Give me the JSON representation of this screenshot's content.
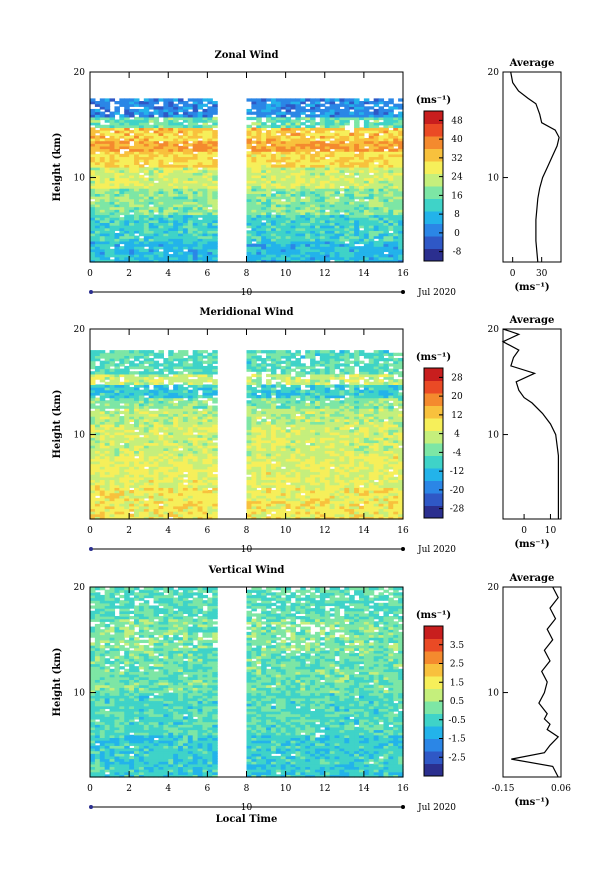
{
  "figure": {
    "xlabel": "Local Time",
    "ylabel": "Height (km)",
    "date_label": "Jul 2020",
    "day_label": "10",
    "unit_label": "(ms⁻¹)",
    "profile_title": "Average"
  },
  "chart_data": [
    {
      "type": "heatmap",
      "title": "Zonal Wind",
      "xlabel": "",
      "ylabel": "Height (km)",
      "xlim": [
        0,
        16
      ],
      "ylim": [
        2,
        20
      ],
      "x_ticks": [
        0,
        2,
        4,
        6,
        8,
        10,
        12,
        14,
        16
      ],
      "y_ticks": [
        10,
        20
      ],
      "data_gap": [
        6.6,
        7.9
      ],
      "colorbar": {
        "levels": [
          -8,
          0,
          8,
          16,
          24,
          32,
          40,
          48
        ],
        "range": [
          -12,
          52
        ]
      },
      "data_top_km": 17.3,
      "field": {
        "layers": [
          {
            "h": [
              2,
              4.0
            ],
            "v": 8
          },
          {
            "h": [
              4.0,
              6.5
            ],
            "v": 12
          },
          {
            "h": [
              6.5,
              9.0
            ],
            "v": 18
          },
          {
            "h": [
              9.0,
              11.0
            ],
            "v": 24
          },
          {
            "h": [
              11.0,
              12.5
            ],
            "v": 30
          },
          {
            "h": [
              12.5,
              13.5
            ],
            "v": 36
          },
          {
            "h": [
              13.5,
              14.6
            ],
            "v": 32
          },
          {
            "h": [
              14.6,
              15.6
            ],
            "v": 16
          },
          {
            "h": [
              15.6,
              17.3
            ],
            "v": 2
          }
        ]
      },
      "profile": {
        "xlim": [
          -10,
          50
        ],
        "x_ticks": [
          0,
          30
        ],
        "height": [
          2,
          4,
          6,
          8,
          9,
          10,
          11,
          12,
          13,
          13.8,
          14.5,
          15.2,
          16,
          17,
          17.5,
          18.2,
          19,
          20
        ],
        "value": [
          26,
          24,
          24,
          26,
          28,
          31,
          36,
          41,
          46,
          48,
          44,
          30,
          28,
          24,
          16,
          6,
          0,
          -2
        ]
      },
      "profile_xlabel": "(ms⁻¹)",
      "date_label": "Jul 2020",
      "day_label": "10"
    },
    {
      "type": "heatmap",
      "title": "Meridional Wind",
      "xlabel": "",
      "ylabel": "Height (km)",
      "xlim": [
        0,
        16
      ],
      "ylim": [
        2,
        20
      ],
      "x_ticks": [
        0,
        2,
        4,
        6,
        8,
        10,
        12,
        14,
        16
      ],
      "y_ticks": [
        10,
        20
      ],
      "data_gap": [
        6.6,
        7.9
      ],
      "colorbar": {
        "levels": [
          -28,
          -20,
          -12,
          -4,
          4,
          12,
          20,
          28
        ],
        "range": [
          -32,
          32
        ]
      },
      "data_top_km": 17.8,
      "field": {
        "layers": [
          {
            "h": [
              2,
              5.0
            ],
            "v": 8
          },
          {
            "h": [
              5.0,
              8.0
            ],
            "v": 6
          },
          {
            "h": [
              8.0,
              11.0
            ],
            "v": 4
          },
          {
            "h": [
              11.0,
              12.5
            ],
            "v": 2
          },
          {
            "h": [
              12.5,
              13.5
            ],
            "v": -2
          },
          {
            "h": [
              13.5,
              14.6
            ],
            "v": -9
          },
          {
            "h": [
              14.6,
              15.6
            ],
            "v": 3
          },
          {
            "h": [
              15.6,
              17.8
            ],
            "v": -6
          }
        ]
      },
      "profile": {
        "xlim": [
          -8,
          14
        ],
        "x_ticks": [
          0,
          10
        ],
        "height": [
          2,
          4,
          6,
          8,
          10,
          11,
          12,
          13,
          13.5,
          14.2,
          15,
          15.8,
          16.5,
          17.3,
          18,
          18.8,
          19.5,
          20
        ],
        "value": [
          13,
          13,
          13,
          13,
          12,
          10,
          7,
          3,
          0,
          -2,
          -3,
          4,
          -5,
          -4,
          -2,
          -8,
          -2,
          -8
        ]
      },
      "profile_xlabel": "(ms⁻¹)",
      "date_label": "Jul 2020",
      "day_label": "10"
    },
    {
      "type": "heatmap",
      "title": "Vertical Wind",
      "xlabel": "Local Time",
      "ylabel": "Height (km)",
      "xlim": [
        0,
        16
      ],
      "ylim": [
        2,
        20
      ],
      "x_ticks": [
        0,
        2,
        4,
        6,
        8,
        10,
        12,
        14,
        16
      ],
      "y_ticks": [
        10,
        20
      ],
      "data_gap": [
        6.6,
        7.9
      ],
      "colorbar": {
        "levels": [
          -2.5,
          -1.5,
          -0.5,
          0.5,
          1.5,
          2.5,
          3.5
        ],
        "range": [
          -3.5,
          4.5
        ]
      },
      "data_top_km": 20,
      "field": {
        "layers": [
          {
            "h": [
              2,
              6.0
            ],
            "v": -0.6
          },
          {
            "h": [
              6.0,
              10.0
            ],
            "v": -0.3
          },
          {
            "h": [
              10.0,
              14.0
            ],
            "v": 0.0
          },
          {
            "h": [
              14.0,
              17.0
            ],
            "v": 0.2
          },
          {
            "h": [
              17.0,
              20.0
            ],
            "v": -0.2
          }
        ]
      },
      "profile": {
        "xlim": [
          -0.15,
          0.06
        ],
        "x_ticks": [
          -0.15,
          0.06
        ],
        "x_tick_labels": [
          "-0.15",
          "0.06"
        ],
        "height": [
          2,
          3,
          3.7,
          4.3,
          5,
          5.8,
          6.5,
          7,
          7.5,
          8,
          9,
          10,
          11,
          12,
          13,
          14,
          15,
          16,
          17,
          18,
          19,
          20
        ],
        "value": [
          0.05,
          0.03,
          -0.12,
          0.0,
          0.02,
          0.05,
          0.01,
          0.02,
          0.0,
          0.01,
          -0.02,
          0.0,
          0.01,
          -0.01,
          0.02,
          0.0,
          0.03,
          0.01,
          0.04,
          0.02,
          0.05,
          0.03
        ]
      },
      "profile_xlabel": "(ms⁻¹)",
      "date_label": "Jul 2020",
      "day_label": "10"
    }
  ]
}
